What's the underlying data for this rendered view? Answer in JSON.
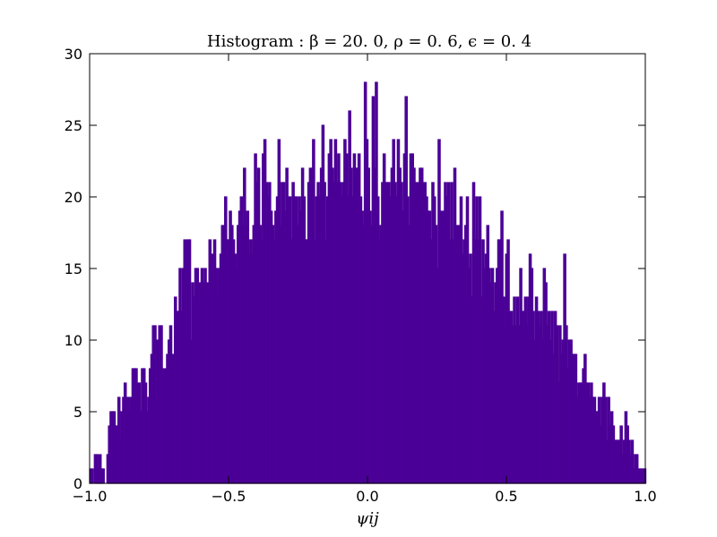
{
  "chart_data": {
    "type": "bar",
    "title": "Histogram : β = 20. 0,  ρ = 0. 6,  ϵ = 0. 4",
    "xlabel": "ψij",
    "ylabel": "",
    "xlim": [
      -1.0,
      1.0
    ],
    "ylim": [
      0,
      30
    ],
    "x_ticks": [
      "−1.0",
      "−0.5",
      "0.0",
      "0.5",
      "1.0"
    ],
    "y_ticks": [
      "0",
      "5",
      "10",
      "15",
      "20",
      "25",
      "30"
    ],
    "bin_range": [
      -1.0,
      1.0
    ],
    "bar_color": "#4b0096",
    "grid": false,
    "values": [
      1,
      1,
      0,
      2,
      2,
      1,
      2,
      1,
      1,
      0,
      0,
      2,
      4,
      5,
      5,
      5,
      4,
      4,
      6,
      3,
      5,
      6,
      7,
      5,
      6,
      5,
      6,
      8,
      8,
      8,
      7,
      7,
      5,
      8,
      8,
      7,
      5,
      6,
      8,
      9,
      11,
      11,
      10,
      6,
      11,
      11,
      8,
      7,
      8,
      9,
      10,
      11,
      9,
      8,
      13,
      12,
      12,
      15,
      12,
      15,
      17,
      13,
      17,
      17,
      10,
      14,
      13,
      15,
      15,
      9,
      14,
      15,
      14,
      15,
      14,
      13,
      17,
      12,
      16,
      17,
      15,
      13,
      15,
      16,
      18,
      18,
      20,
      17,
      17,
      19,
      18,
      17,
      16,
      15,
      18,
      19,
      20,
      18,
      22,
      18,
      19,
      16,
      17,
      16,
      18,
      23,
      21,
      22,
      18,
      17,
      23,
      24,
      21,
      20,
      21,
      19,
      18,
      17,
      19,
      20,
      24,
      18,
      21,
      21,
      19,
      22,
      20,
      20,
      17,
      21,
      20,
      20,
      18,
      20,
      19,
      22,
      20,
      17,
      17,
      21,
      22,
      22,
      24,
      17,
      20,
      21,
      20,
      22,
      25,
      21,
      17,
      20,
      23,
      24,
      22,
      21,
      24,
      21,
      23,
      21,
      20,
      21,
      24,
      23,
      20,
      26,
      22,
      20,
      23,
      22,
      22,
      23,
      20,
      19,
      18,
      28,
      24,
      22,
      19,
      18,
      27,
      22,
      28,
      20,
      17,
      18,
      21,
      23,
      21,
      21,
      21,
      20,
      22,
      24,
      21,
      20,
      24,
      22,
      21,
      19,
      23,
      27,
      20,
      18,
      23,
      23,
      22,
      21,
      20,
      21,
      22,
      22,
      19,
      21,
      20,
      19,
      19,
      17,
      21,
      20,
      18,
      15,
      24,
      19,
      17,
      19,
      21,
      20,
      21,
      17,
      21,
      17,
      22,
      18,
      17,
      18,
      20,
      16,
      17,
      18,
      20,
      15,
      16,
      13,
      21,
      17,
      20,
      17,
      20,
      13,
      17,
      15,
      16,
      18,
      15,
      14,
      15,
      12,
      14,
      15,
      17,
      17,
      19,
      13,
      11,
      16,
      17,
      12,
      12,
      11,
      13,
      11,
      13,
      11,
      15,
      12,
      12,
      13,
      11,
      13,
      16,
      15,
      12,
      10,
      13,
      12,
      11,
      12,
      10,
      15,
      14,
      11,
      12,
      10,
      12,
      9,
      12,
      11,
      7,
      11,
      9,
      10,
      16,
      11,
      8,
      10,
      10,
      9,
      9,
      9,
      6,
      7,
      7,
      7,
      8,
      9,
      7,
      7,
      6,
      7,
      6,
      6,
      5,
      5,
      6,
      4,
      6,
      7,
      6,
      3,
      6,
      4,
      5,
      4,
      3,
      3,
      3,
      3,
      4,
      2,
      3,
      5,
      4,
      3,
      2,
      3,
      1,
      2,
      2,
      1,
      1,
      1,
      1,
      1
    ]
  }
}
